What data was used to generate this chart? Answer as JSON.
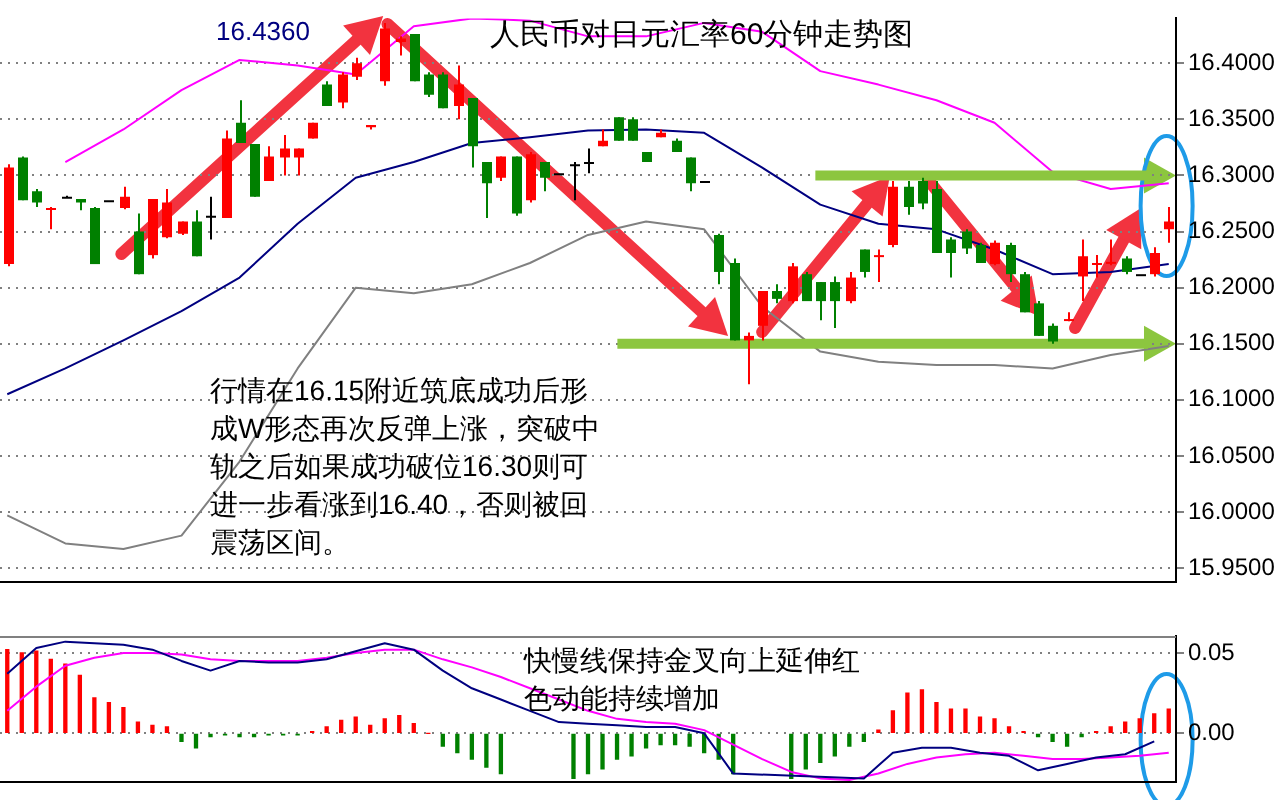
{
  "chart_data": [
    {
      "type": "candlestick",
      "title": "人民币对日元汇率60分钟走势图",
      "categories": [
        null,
        null,
        null,
        null,
        null,
        null,
        null,
        null,
        null,
        null,
        null,
        null,
        null,
        null,
        null,
        null,
        null,
        null,
        null,
        null,
        null,
        null,
        null,
        null,
        null,
        null,
        null,
        null,
        null,
        null,
        null,
        null,
        null,
        null,
        null,
        null,
        null,
        null,
        null,
        null,
        null,
        null,
        null,
        null,
        null,
        null,
        null,
        null,
        null,
        null,
        null,
        null,
        null,
        null,
        null,
        null,
        null,
        null,
        null,
        null,
        null,
        null,
        null,
        null,
        null,
        null,
        null,
        null,
        null,
        null,
        null,
        null,
        null,
        null,
        null,
        null,
        null,
        null,
        null,
        null,
        null
      ],
      "ohlc": [
        [
          16.221,
          16.31,
          16.219,
          16.307
        ],
        [
          16.316,
          16.317,
          16.278,
          16.278
        ],
        [
          16.286,
          16.288,
          16.272,
          16.276
        ],
        [
          16.27,
          16.272,
          16.252,
          16.271
        ],
        [
          16.281,
          16.282,
          16.28,
          16.281
        ],
        [
          16.279,
          16.279,
          16.269,
          16.276
        ],
        [
          16.271,
          16.272,
          16.221,
          16.221
        ],
        [
          16.278,
          16.278,
          16.278,
          16.278
        ],
        [
          16.271,
          16.29,
          16.27,
          16.281
        ],
        [
          16.25,
          16.266,
          16.212,
          16.212
        ],
        [
          16.229,
          16.279,
          16.226,
          16.279
        ],
        [
          16.245,
          16.288,
          16.244,
          16.276
        ],
        [
          16.248,
          16.259,
          16.247,
          16.259
        ],
        [
          16.259,
          16.269,
          16.228,
          16.228
        ],
        [
          16.264,
          16.281,
          16.243,
          16.264
        ],
        [
          16.262,
          16.34,
          16.262,
          16.333
        ],
        [
          16.347,
          16.367,
          16.329,
          16.329
        ],
        [
          16.328,
          16.328,
          16.281,
          16.281
        ],
        [
          16.295,
          16.326,
          16.295,
          16.317
        ],
        [
          16.316,
          16.336,
          16.3,
          16.324
        ],
        [
          16.316,
          16.324,
          16.3,
          16.324
        ],
        [
          16.333,
          16.347,
          16.333,
          16.347
        ],
        [
          16.381,
          16.384,
          16.362,
          16.362
        ],
        [
          16.365,
          16.392,
          16.36,
          16.39
        ],
        [
          16.388,
          16.405,
          16.385,
          16.4
        ],
        [
          16.343,
          16.345,
          16.341,
          16.345
        ],
        [
          16.384,
          16.436,
          16.38,
          16.431
        ],
        [
          16.419,
          16.424,
          16.407,
          16.422
        ],
        [
          16.426,
          16.426,
          16.384,
          16.384
        ],
        [
          16.39,
          16.392,
          16.37,
          16.372
        ],
        [
          16.39,
          16.392,
          16.36,
          16.36
        ],
        [
          16.362,
          16.398,
          16.35,
          16.381
        ],
        [
          16.369,
          16.369,
          16.307,
          16.326
        ],
        [
          16.312,
          16.312,
          16.262,
          16.293
        ],
        [
          16.298,
          16.317,
          16.295,
          16.317
        ],
        [
          16.317,
          16.317,
          16.264,
          16.266
        ],
        [
          16.278,
          16.321,
          16.276,
          16.319
        ],
        [
          16.312,
          16.312,
          16.286,
          16.298
        ],
        [
          16.302,
          16.302,
          16.302,
          16.302
        ],
        [
          16.31,
          16.312,
          16.278,
          16.31
        ],
        [
          16.312,
          16.324,
          16.302,
          16.312
        ],
        [
          16.326,
          16.341,
          16.326,
          16.331
        ],
        [
          16.352,
          16.352,
          16.331,
          16.331
        ],
        [
          16.35,
          16.352,
          16.331,
          16.331
        ],
        [
          16.321,
          16.321,
          16.312,
          16.312
        ],
        [
          16.334,
          16.341,
          16.334,
          16.338
        ],
        [
          16.331,
          16.333,
          16.321,
          16.321
        ],
        [
          16.316,
          16.316,
          16.286,
          16.293
        ],
        [
          16.295,
          16.295,
          16.295,
          16.295
        ],
        [
          16.247,
          16.248,
          16.203,
          16.214
        ],
        [
          16.222,
          16.226,
          16.153,
          16.153
        ],
        [
          16.153,
          16.16,
          16.114,
          16.157
        ],
        [
          16.166,
          16.197,
          16.153,
          16.197
        ],
        [
          16.197,
          16.203,
          16.186,
          16.19
        ],
        [
          16.188,
          16.222,
          16.186,
          16.219
        ],
        [
          16.212,
          16.214,
          16.188,
          16.188
        ],
        [
          16.205,
          16.205,
          16.171,
          16.188
        ],
        [
          16.205,
          16.21,
          16.164,
          16.188
        ],
        [
          16.188,
          16.214,
          16.186,
          16.209
        ],
        [
          16.234,
          16.234,
          16.209,
          16.214
        ],
        [
          16.228,
          16.234,
          16.205,
          16.229
        ],
        [
          16.238,
          16.295,
          16.236,
          16.29
        ],
        [
          16.29,
          16.295,
          16.265,
          16.272
        ],
        [
          16.295,
          16.298,
          16.27,
          16.275
        ],
        [
          16.288,
          16.295,
          16.231,
          16.231
        ],
        [
          16.243,
          16.245,
          16.209,
          16.231
        ],
        [
          16.25,
          16.252,
          16.23,
          16.235
        ],
        [
          16.238,
          16.24,
          16.222,
          16.222
        ],
        [
          16.221,
          16.242,
          16.22,
          16.24
        ],
        [
          16.238,
          16.24,
          16.205,
          16.212
        ],
        [
          16.212,
          16.214,
          16.178,
          16.178
        ],
        [
          16.186,
          16.188,
          16.157,
          16.157
        ],
        [
          16.166,
          16.168,
          16.15,
          16.152
        ],
        [
          16.171,
          16.178,
          16.17,
          16.172
        ],
        [
          16.21,
          16.243,
          16.188,
          16.228
        ],
        [
          16.221,
          16.229,
          16.209,
          16.222
        ],
        [
          16.222,
          16.243,
          16.22,
          16.223
        ],
        [
          16.226,
          16.228,
          16.212,
          16.214
        ],
        [
          16.212,
          16.212,
          16.212,
          16.212
        ],
        [
          16.212,
          16.236,
          16.21,
          16.231
        ],
        [
          16.252,
          16.272,
          16.24,
          16.259
        ]
      ],
      "series": [
        {
          "type": "line",
          "color": "#ff00ff",
          "values": [
            null,
            null,
            null,
            null,
            16.312,
            null,
            null,
            null,
            16.341,
            null,
            null,
            null,
            16.376,
            null,
            null,
            null,
            16.403,
            null,
            null,
            null,
            16.398,
            null,
            null,
            null,
            16.39,
            null,
            null,
            null,
            16.433,
            null,
            null,
            null,
            16.44,
            null,
            null,
            null,
            16.438,
            null,
            null,
            null,
            16.424,
            null,
            null,
            null,
            16.424,
            null,
            null,
            null,
            16.436,
            null,
            null,
            null,
            16.428,
            null,
            null,
            null,
            16.393,
            null,
            null,
            null,
            16.381,
            null,
            null,
            null,
            16.367,
            null,
            null,
            null,
            16.347,
            null,
            null,
            null,
            16.303,
            null,
            null,
            null,
            16.288,
            null,
            null,
            null,
            16.293
          ]
        },
        {
          "type": "line",
          "color": "#000080",
          "values": [
            16.105,
            null,
            null,
            null,
            16.128,
            null,
            null,
            null,
            16.153,
            null,
            null,
            null,
            16.179,
            null,
            null,
            null,
            16.209,
            null,
            null,
            null,
            16.257,
            null,
            null,
            null,
            16.298,
            null,
            null,
            null,
            16.312,
            null,
            null,
            null,
            16.329,
            null,
            null,
            null,
            16.334,
            null,
            null,
            null,
            16.34,
            null,
            null,
            null,
            16.341,
            null,
            null,
            null,
            16.338,
            null,
            null,
            null,
            16.307,
            null,
            null,
            null,
            16.274,
            null,
            null,
            null,
            16.257,
            null,
            null,
            null,
            16.252,
            null,
            null,
            null,
            16.234,
            null,
            null,
            null,
            16.212,
            null,
            null,
            null,
            16.214,
            null,
            null,
            null,
            16.221
          ]
        },
        {
          "type": "line",
          "color": "#808080",
          "values": [
            15.997,
            null,
            null,
            null,
            15.972,
            null,
            null,
            null,
            15.967,
            null,
            null,
            null,
            15.979,
            null,
            null,
            null,
            16.045,
            null,
            null,
            null,
            16.128,
            null,
            null,
            null,
            16.2,
            null,
            null,
            null,
            16.195,
            null,
            null,
            null,
            16.203,
            null,
            null,
            null,
            16.222,
            null,
            null,
            null,
            16.247,
            null,
            null,
            null,
            16.259,
            null,
            null,
            null,
            16.252,
            null,
            null,
            null,
            16.183,
            null,
            null,
            null,
            16.143,
            null,
            null,
            null,
            16.134,
            null,
            null,
            null,
            16.131,
            null,
            null,
            null,
            16.131,
            null,
            null,
            null,
            16.128,
            null,
            null,
            null,
            16.14,
            null,
            null,
            null,
            16.148
          ]
        }
      ],
      "ylim": [
        15.938,
        16.44
      ],
      "yticks": [
        {
          "value": 15.95,
          "label": "15.9500"
        },
        {
          "value": 16.0,
          "label": "16.0000"
        },
        {
          "value": 16.05,
          "label": "16.0500"
        },
        {
          "value": 16.1,
          "label": "16.1000"
        },
        {
          "value": 16.15,
          "label": "16.1500"
        },
        {
          "value": 16.2,
          "label": "16.2000"
        },
        {
          "value": 16.25,
          "label": "16.2500"
        },
        {
          "value": 16.3,
          "label": "16.3000"
        },
        {
          "value": 16.35,
          "label": "16.3500"
        },
        {
          "value": 16.4,
          "label": "16.4000"
        }
      ],
      "grid": "y",
      "legend": false,
      "tick_labels": "y",
      "ref_lines": [
        {
          "axis": "y",
          "value": 16.3,
          "color": "#8cc63f"
        },
        {
          "axis": "y",
          "value": 16.15,
          "color": "#8cc63f"
        }
      ],
      "annotations": [
        "16.4360",
        "行情在16.15附近筑底成功后形成W形态再次反弹上涨，突破中轨之后如果成功破位16.30则可进一步看涨到16.40，否则被回震荡区间。"
      ]
    },
    {
      "type": "bar",
      "categories": [
        null,
        null,
        null,
        null,
        null,
        null,
        null,
        null,
        null,
        null,
        null,
        null,
        null,
        null,
        null,
        null,
        null,
        null,
        null,
        null,
        null,
        null,
        null,
        null,
        null,
        null,
        null,
        null,
        null,
        null,
        null,
        null,
        null,
        null,
        null,
        null,
        null,
        null,
        null,
        null,
        null,
        null,
        null,
        null,
        null,
        null,
        null,
        null,
        null,
        null,
        null,
        null,
        null,
        null,
        null,
        null,
        null,
        null,
        null,
        null,
        null,
        null,
        null,
        null,
        null,
        null,
        null,
        null,
        null,
        null,
        null,
        null,
        null,
        null,
        null,
        null,
        null,
        null,
        null,
        null,
        null
      ],
      "series": [
        {
          "color": "#ff0000",
          "values": [
            0.052,
            0.05,
            0.051,
            0.046,
            0.043,
            0.036,
            0.022,
            0.019,
            0.016,
            0.007,
            0.005,
            0.004,
            null,
            null,
            null,
            null,
            null,
            null,
            null,
            null,
            null,
            0.001,
            0.004,
            0.008,
            0.01,
            0.005,
            0.009,
            0.011,
            0.006,
            0.0,
            null,
            null,
            null,
            null,
            null,
            null,
            null,
            null,
            null,
            null,
            null,
            null,
            null,
            null,
            null,
            null,
            null,
            null,
            null,
            null,
            null,
            null,
            null,
            null,
            null,
            null,
            null,
            null,
            null,
            null,
            0.002,
            0.014,
            0.025,
            0.027,
            0.019,
            0.015,
            0.015,
            0.01,
            0.009,
            0.004,
            0.001,
            null,
            null,
            null,
            null,
            0.001,
            0.004,
            0.007,
            0.009,
            0.012,
            0.015
          ]
        },
        {
          "color": "#008000",
          "values": [
            null,
            null,
            null,
            null,
            null,
            null,
            null,
            null,
            null,
            null,
            null,
            null,
            -0.005,
            -0.009,
            -0.002,
            -0.001,
            -0.002,
            -0.002,
            -0.001,
            -0.001,
            -0.001,
            null,
            null,
            null,
            null,
            null,
            null,
            null,
            null,
            null,
            -0.008,
            -0.012,
            -0.016,
            -0.021,
            -0.025,
            null,
            null,
            null,
            null,
            -0.028,
            -0.025,
            -0.022,
            -0.016,
            -0.014,
            -0.009,
            -0.007,
            -0.007,
            -0.008,
            -0.012,
            -0.016,
            -0.025,
            null,
            null,
            null,
            -0.028,
            -0.022,
            -0.018,
            -0.014,
            -0.008,
            -0.005,
            null,
            null,
            null,
            null,
            null,
            null,
            null,
            null,
            null,
            null,
            null,
            -0.002,
            -0.005,
            -0.008,
            -0.002,
            null,
            null,
            null,
            null,
            null,
            null
          ]
        },
        {
          "type": "line",
          "color": "#000080",
          "values": [
            0.037,
            null,
            0.053,
            null,
            0.057,
            null,
            null,
            null,
            0.055,
            null,
            0.052,
            null,
            0.045,
            null,
            0.039,
            null,
            0.045,
            null,
            0.044,
            null,
            0.044,
            null,
            0.046,
            null,
            0.051,
            null,
            0.056,
            null,
            0.052,
            null,
            0.039,
            null,
            0.028,
            null,
            0.021,
            null,
            0.014,
            null,
            0.007,
            null,
            0.006,
            null,
            0.005,
            null,
            0.004,
            null,
            0.004,
            null,
            0.0,
            null,
            -0.025,
            null,
            null,
            null,
            null,
            null,
            null,
            null,
            null,
            -0.028,
            null,
            -0.012,
            null,
            -0.009,
            null,
            -0.009,
            null,
            -0.012,
            null,
            -0.014,
            null,
            -0.023,
            null,
            -0.019,
            null,
            -0.015,
            null,
            -0.013,
            null,
            -0.005,
            null
          ]
        },
        {
          "type": "line",
          "color": "#ff00ff",
          "values": [
            0.014,
            null,
            0.029,
            null,
            0.042,
            null,
            0.047,
            null,
            0.05,
            null,
            0.05,
            null,
            0.049,
            null,
            0.046,
            null,
            0.045,
            null,
            0.045,
            null,
            0.045,
            null,
            0.047,
            null,
            0.05,
            null,
            0.052,
            null,
            0.052,
            null,
            0.046,
            null,
            0.041,
            null,
            0.035,
            null,
            0.028,
            null,
            0.021,
            null,
            0.014,
            null,
            0.009,
            null,
            0.007,
            null,
            0.006,
            null,
            0.002,
            null,
            -0.007,
            null,
            -0.016,
            null,
            -0.024,
            null,
            -0.028,
            null,
            -0.029,
            null,
            -0.025,
            null,
            -0.019,
            null,
            -0.015,
            null,
            -0.013,
            null,
            -0.012,
            null,
            -0.014,
            null,
            -0.016,
            null,
            -0.016,
            null,
            -0.015,
            null,
            -0.014,
            null,
            -0.012
          ]
        }
      ],
      "ylim": [
        -0.03,
        0.0605
      ],
      "yticks": [
        {
          "value": 0,
          "label": "0.00"
        },
        {
          "value": 0.05,
          "label": "0.05"
        }
      ],
      "grid": "y",
      "legend": false,
      "tick_labels": "y",
      "annotations": [
        "快慢线保持金叉向上延伸红色动能持续增加"
      ]
    }
  ]
}
